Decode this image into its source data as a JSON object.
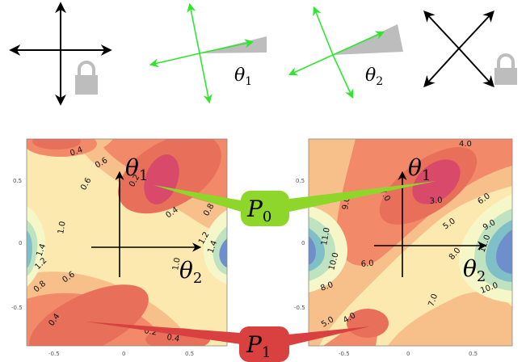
{
  "top_row": {
    "theta1_label": "θ",
    "theta1_sub": "1",
    "theta2_label": "θ",
    "theta2_sub": "2",
    "lock_icon": "lock-icon",
    "colors": {
      "green_arrow": "#2ee62e",
      "black_arrow": "#000000",
      "wedge": "#bdbdbd",
      "lock": "#bdbdbd"
    }
  },
  "left_plot": {
    "y_ticks": [
      "0.5",
      "0",
      "-0.5"
    ],
    "x_ticks": [
      "-0.5",
      "0",
      "0.5"
    ],
    "contour_labels": [
      "0.4",
      "0.6",
      "0.2",
      "0.6",
      "0.4",
      "0.8",
      "1.0",
      "1.4",
      "1.2",
      "0.8",
      "0.6",
      "1.0",
      "1.2",
      "1.4",
      "0.4",
      "0.2",
      "0.4"
    ],
    "axis_up_label": "θ",
    "axis_up_sub": "1",
    "axis_right_label": "θ",
    "axis_right_sub": "2"
  },
  "right_plot": {
    "y_ticks": [
      "0.5",
      "0",
      "-0.5"
    ],
    "x_ticks": [
      "-0.5",
      "0",
      "0.5"
    ],
    "contour_labels": [
      "4.0",
      "7.0",
      "9.0",
      "3.0",
      "6.0",
      "5.0",
      "9.0",
      "11.0",
      "10.0",
      "8.0",
      "8.0",
      "11.0",
      "10.0",
      "6.0",
      "7.0",
      "5.0",
      "4.0"
    ],
    "axis_up_label": "θ",
    "axis_up_sub": "1",
    "axis_right_label": "θ",
    "axis_right_sub": "2"
  },
  "callouts": {
    "p0_label": "P",
    "p0_sub": "0",
    "p1_label": "P",
    "p1_sub": "1",
    "colors": {
      "p0": "#8fd62a",
      "p1": "#d94040"
    }
  },
  "palette": {
    "high": "#e85a5a",
    "mid_high": "#f28a6a",
    "mid": "#f7c08a",
    "low_mid": "#fbe9b0",
    "low": "#f5f7c8",
    "cool1": "#bfe3c0",
    "cool2": "#7fc0c8",
    "cool3": "#6f8fcc"
  }
}
